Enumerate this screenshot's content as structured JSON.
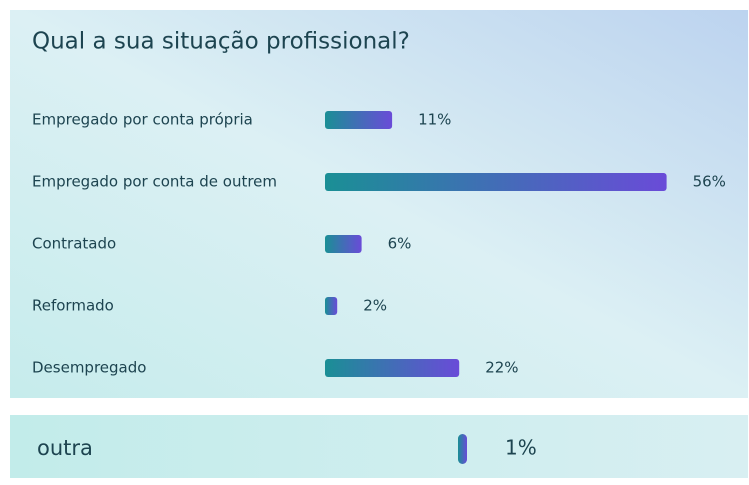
{
  "chart_data": [
    {
      "type": "bar",
      "orientation": "horizontal",
      "title": "Qual a sua situação profissional?",
      "categories": [
        "Empregado por conta própria",
        "Empregado por conta de outrem",
        "Contratado",
        "Reformado",
        "Desempregado"
      ],
      "values": [
        11,
        56,
        6,
        2,
        22
      ],
      "value_labels": [
        "11%",
        "56%",
        "6%",
        "2%",
        "22%"
      ],
      "gradient": [
        "#1a8f95",
        "#6a4bd8"
      ]
    },
    {
      "type": "bar",
      "orientation": "horizontal",
      "categories": [
        "outra"
      ],
      "values": [
        1
      ],
      "value_labels": [
        "1%"
      ],
      "gradient": [
        "#1a8f95",
        "#6a4bd8"
      ]
    }
  ]
}
